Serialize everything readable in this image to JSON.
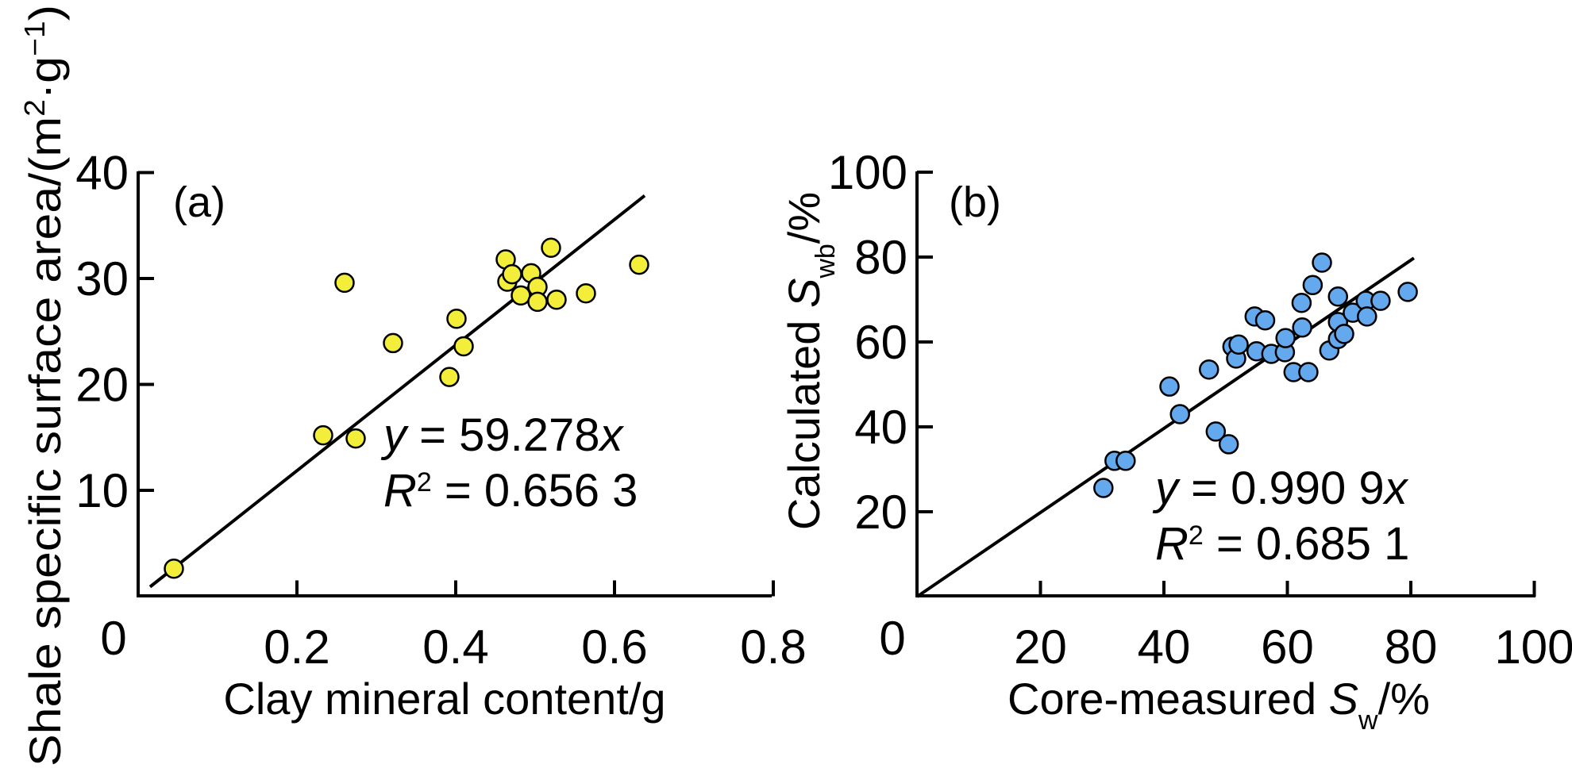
{
  "chart_data": [
    {
      "panel": "(a)",
      "type": "scatter",
      "title": "",
      "xlabel": "Clay mineral content/g",
      "ylabel": "Shale specific surface area/(m²·g⁻¹)",
      "ylabel_parts": {
        "main": "Shale specific surface area/(m",
        "sup1": "2",
        "mid": "·g",
        "sup2": "−1",
        "end": ")"
      },
      "xlim": [
        0,
        0.8
      ],
      "ylim": [
        0,
        40
      ],
      "xticks": [
        0.2,
        0.4,
        0.6,
        0.8
      ],
      "xtick_labels": [
        "0.2",
        "0.4",
        "0.6",
        "0.8"
      ],
      "yticks": [
        10,
        20,
        30,
        40
      ],
      "ytick_labels": [
        "10",
        "20",
        "30",
        "40"
      ],
      "origin_label": "0",
      "grid": false,
      "marker_color": "#f2ee3a",
      "marker_edge": "#000000",
      "points": [
        {
          "x": 0.045,
          "y": 2.6
        },
        {
          "x": 0.233,
          "y": 15.2
        },
        {
          "x": 0.26,
          "y": 29.6
        },
        {
          "x": 0.274,
          "y": 14.9
        },
        {
          "x": 0.321,
          "y": 23.9
        },
        {
          "x": 0.392,
          "y": 20.7
        },
        {
          "x": 0.401,
          "y": 26.2
        },
        {
          "x": 0.41,
          "y": 23.6
        },
        {
          "x": 0.463,
          "y": 31.8
        },
        {
          "x": 0.465,
          "y": 29.7
        },
        {
          "x": 0.471,
          "y": 30.4
        },
        {
          "x": 0.482,
          "y": 28.4
        },
        {
          "x": 0.495,
          "y": 30.5
        },
        {
          "x": 0.503,
          "y": 29.2
        },
        {
          "x": 0.503,
          "y": 27.8
        },
        {
          "x": 0.52,
          "y": 32.9
        },
        {
          "x": 0.527,
          "y": 28.0
        },
        {
          "x": 0.564,
          "y": 28.6
        },
        {
          "x": 0.631,
          "y": 31.3
        }
      ],
      "fit": {
        "slope": 59.278,
        "x_range": [
          0.015,
          0.638
        ]
      },
      "annotation": {
        "eq_y": "y",
        "eq_rest": " = 59.278",
        "eq_x": "x",
        "r_label": "R",
        "r_sup": "2",
        "r_rest": " = 0.656 3"
      }
    },
    {
      "panel": "(b)",
      "type": "scatter",
      "title": "",
      "xlabel": "Core-measured S_w/%",
      "xlabel_parts": {
        "main": "Core-measured ",
        "var": "S",
        "sub": "w",
        "end": "/%"
      },
      "ylabel": "Calculated S_wb/%",
      "ylabel_parts": {
        "main": "Calculated ",
        "var": "S",
        "sub": "wb",
        "end": "/%"
      },
      "xlim": [
        0,
        100
      ],
      "ylim": [
        0,
        100
      ],
      "xticks": [
        20,
        40,
        60,
        80,
        100
      ],
      "xtick_labels": [
        "20",
        "40",
        "60",
        "80",
        "100"
      ],
      "yticks": [
        20,
        40,
        60,
        80,
        100
      ],
      "ytick_labels": [
        "20",
        "40",
        "60",
        "80",
        "100"
      ],
      "origin_label": "0",
      "grid": false,
      "marker_color": "#64a8ee",
      "marker_edge": "#000000",
      "points": [
        {
          "x": 30.2,
          "y": 25.6
        },
        {
          "x": 32.0,
          "y": 32.0
        },
        {
          "x": 33.8,
          "y": 32.0
        },
        {
          "x": 40.9,
          "y": 49.5
        },
        {
          "x": 42.6,
          "y": 43.0
        },
        {
          "x": 47.3,
          "y": 53.5
        },
        {
          "x": 48.4,
          "y": 38.9
        },
        {
          "x": 50.5,
          "y": 35.9
        },
        {
          "x": 51.1,
          "y": 58.9
        },
        {
          "x": 51.7,
          "y": 56.1
        },
        {
          "x": 52.1,
          "y": 59.4
        },
        {
          "x": 54.7,
          "y": 66.0
        },
        {
          "x": 55.0,
          "y": 57.8
        },
        {
          "x": 56.4,
          "y": 65.1
        },
        {
          "x": 57.4,
          "y": 57.2
        },
        {
          "x": 59.6,
          "y": 57.6
        },
        {
          "x": 59.7,
          "y": 60.9
        },
        {
          "x": 61.0,
          "y": 52.9
        },
        {
          "x": 62.3,
          "y": 69.2
        },
        {
          "x": 62.4,
          "y": 63.4
        },
        {
          "x": 63.4,
          "y": 52.9
        },
        {
          "x": 64.1,
          "y": 73.4
        },
        {
          "x": 65.6,
          "y": 78.7
        },
        {
          "x": 66.8,
          "y": 58.0
        },
        {
          "x": 68.2,
          "y": 70.7
        },
        {
          "x": 68.2,
          "y": 64.7
        },
        {
          "x": 68.2,
          "y": 60.7
        },
        {
          "x": 69.2,
          "y": 61.9
        },
        {
          "x": 70.6,
          "y": 66.9
        },
        {
          "x": 72.7,
          "y": 69.7
        },
        {
          "x": 72.9,
          "y": 66.0
        },
        {
          "x": 75.1,
          "y": 69.7
        },
        {
          "x": 79.5,
          "y": 71.8
        }
      ],
      "fit": {
        "slope": 0.9909,
        "x_range": [
          0,
          80.5
        ]
      },
      "annotation": {
        "eq_y": "y",
        "eq_rest": " = 0.990 9",
        "eq_x": "x",
        "r_label": "R",
        "r_sup": "2",
        "r_rest": " = 0.685 1"
      }
    }
  ]
}
